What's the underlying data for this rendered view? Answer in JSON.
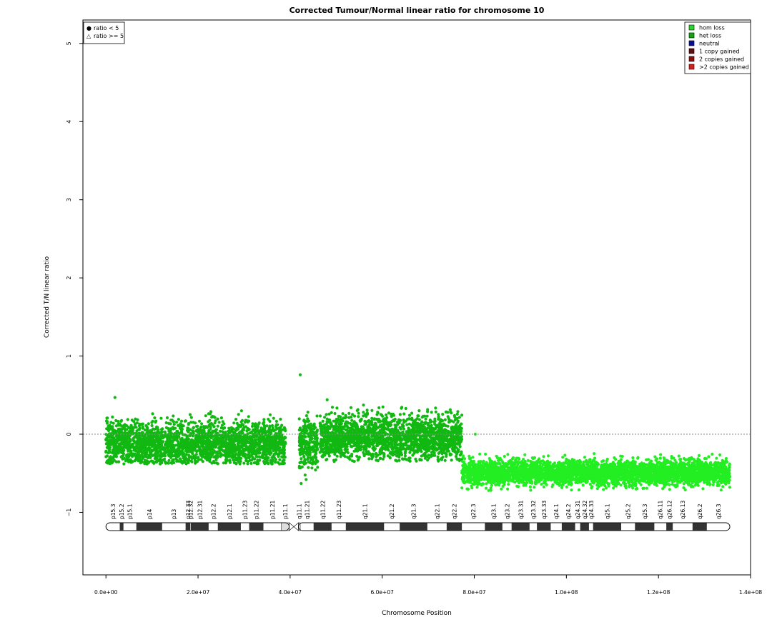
{
  "chart_data": {
    "type": "scatter",
    "title": "Corrected Tumour/Normal linear ratio for chromosome  10",
    "xlabel": "Chromosome Position",
    "ylabel": "Corrected T/N linear ratio",
    "xlim": [
      -5000000,
      140000000
    ],
    "ylim": [
      -1.8,
      5.3
    ],
    "x_ticks": [
      0,
      20000000,
      40000000,
      60000000,
      80000000,
      100000000,
      120000000,
      140000000
    ],
    "x_tick_labels": [
      "0.0e+00",
      "2.0e+07",
      "4.0e+07",
      "6.0e+07",
      "8.0e+07",
      "1.0e+08",
      "1.2e+08",
      "1.4e+08"
    ],
    "y_ticks": [
      -1,
      0,
      1,
      2,
      3,
      4,
      5
    ],
    "y_tick_labels": [
      "−1",
      "0",
      "1",
      "2",
      "3",
      "4",
      "5"
    ],
    "reference_line_y": 0,
    "symbol_legend": {
      "position": "top-left",
      "items": [
        {
          "symbol": "●",
          "label": "ratio < 5"
        },
        {
          "symbol": "△",
          "label": "ratio >= 5"
        }
      ]
    },
    "legend": {
      "position": "top-right",
      "items": [
        {
          "label": "hom loss",
          "color": "#2bd62b"
        },
        {
          "label": "het loss",
          "color": "#17a317"
        },
        {
          "label": "neutral",
          "color": "#0e0e94"
        },
        {
          "label": "1 copy gained",
          "color": "#5a1010"
        },
        {
          "label": "2 copies gained",
          "color": "#8b1010"
        },
        {
          "label": ">2 copies gained",
          "color": "#d42020"
        }
      ]
    },
    "series": [
      {
        "name": "het loss",
        "color": "#12b812",
        "segments": [
          {
            "x_start": 0,
            "x_end": 39000000,
            "mean": -0.12,
            "spread": 0.14,
            "min": -0.38,
            "max": 0.47
          },
          {
            "x_start": 42000000,
            "x_end": 46000000,
            "mean": -0.1,
            "spread": 0.16,
            "min": -0.63,
            "max": 0.76
          },
          {
            "x_start": 46500000,
            "x_end": 77300000,
            "mean": -0.04,
            "spread": 0.14,
            "min": -0.35,
            "max": 0.44
          }
        ]
      },
      {
        "name": "hom loss",
        "color": "#22ee22",
        "segments": [
          {
            "x_start": 77300000,
            "x_end": 135500000,
            "mean": -0.49,
            "spread": 0.08,
            "min": -0.72,
            "max": 0.0
          }
        ]
      }
    ],
    "ideogram": {
      "centromere": [
        39800000,
        41800000
      ],
      "bands": [
        {
          "name": "p15.3",
          "start": 0,
          "end": 3000000,
          "stain": "gneg"
        },
        {
          "name": "p15.2",
          "start": 3000000,
          "end": 3800000,
          "stain": "gpos"
        },
        {
          "name": "p15.1",
          "start": 3800000,
          "end": 6600000,
          "stain": "gneg"
        },
        {
          "name": "p14",
          "start": 6600000,
          "end": 12200000,
          "stain": "gpos"
        },
        {
          "name": "p13",
          "start": 12200000,
          "end": 17300000,
          "stain": "gneg"
        },
        {
          "name": "p12.33",
          "start": 17300000,
          "end": 18300000,
          "stain": "gpos"
        },
        {
          "name": "p12.32",
          "start": 18300000,
          "end": 18400000,
          "stain": "gneg"
        },
        {
          "name": "p12.31",
          "start": 18400000,
          "end": 22300000,
          "stain": "gpos"
        },
        {
          "name": "p12.2",
          "start": 22300000,
          "end": 24300000,
          "stain": "gneg"
        },
        {
          "name": "p12.1",
          "start": 24300000,
          "end": 29300000,
          "stain": "gpos"
        },
        {
          "name": "p11.23",
          "start": 29300000,
          "end": 31100000,
          "stain": "gneg"
        },
        {
          "name": "p11.22",
          "start": 31100000,
          "end": 34200000,
          "stain": "gpos"
        },
        {
          "name": "p11.21",
          "start": 34200000,
          "end": 38100000,
          "stain": "gneg"
        },
        {
          "name": "p11.1",
          "start": 38100000,
          "end": 39800000,
          "stain": "gvar"
        },
        {
          "name": "q11.1",
          "start": 41800000,
          "end": 42200000,
          "stain": "gvar"
        },
        {
          "name": "q11.21",
          "start": 42200000,
          "end": 45100000,
          "stain": "gneg"
        },
        {
          "name": "q11.22",
          "start": 45100000,
          "end": 49000000,
          "stain": "gpos"
        },
        {
          "name": "q11.23",
          "start": 49000000,
          "end": 52100000,
          "stain": "gneg"
        },
        {
          "name": "q21.1",
          "start": 52100000,
          "end": 60400000,
          "stain": "gpos"
        },
        {
          "name": "q21.2",
          "start": 60400000,
          "end": 63800000,
          "stain": "gneg"
        },
        {
          "name": "q21.3",
          "start": 63800000,
          "end": 69800000,
          "stain": "gpos"
        },
        {
          "name": "q22.1",
          "start": 69800000,
          "end": 74000000,
          "stain": "gneg"
        },
        {
          "name": "q22.2",
          "start": 74000000,
          "end": 77300000,
          "stain": "gpos"
        },
        {
          "name": "q22.3",
          "start": 77300000,
          "end": 82300000,
          "stain": "gneg"
        },
        {
          "name": "q23.1",
          "start": 82300000,
          "end": 86100000,
          "stain": "gpos"
        },
        {
          "name": "q23.2",
          "start": 86100000,
          "end": 88100000,
          "stain": "gneg"
        },
        {
          "name": "q23.31",
          "start": 88100000,
          "end": 92000000,
          "stain": "gpos"
        },
        {
          "name": "q23.32",
          "start": 92000000,
          "end": 93600000,
          "stain": "gneg"
        },
        {
          "name": "q23.33",
          "start": 93600000,
          "end": 96600000,
          "stain": "gpos"
        },
        {
          "name": "q24.1",
          "start": 96600000,
          "end": 99000000,
          "stain": "gneg"
        },
        {
          "name": "q24.2",
          "start": 99000000,
          "end": 101900000,
          "stain": "gpos"
        },
        {
          "name": "q24.31",
          "start": 101900000,
          "end": 103000000,
          "stain": "gneg"
        },
        {
          "name": "q24.32",
          "start": 103000000,
          "end": 104900000,
          "stain": "gpos"
        },
        {
          "name": "q24.33",
          "start": 104900000,
          "end": 105800000,
          "stain": "gneg"
        },
        {
          "name": "q25.1",
          "start": 105800000,
          "end": 111900000,
          "stain": "gpos"
        },
        {
          "name": "q25.2",
          "start": 111900000,
          "end": 114900000,
          "stain": "gneg"
        },
        {
          "name": "q25.3",
          "start": 114900000,
          "end": 119100000,
          "stain": "gpos"
        },
        {
          "name": "q26.11",
          "start": 119100000,
          "end": 121700000,
          "stain": "gneg"
        },
        {
          "name": "q26.12",
          "start": 121700000,
          "end": 123100000,
          "stain": "gpos"
        },
        {
          "name": "q26.13",
          "start": 123100000,
          "end": 127400000,
          "stain": "gneg"
        },
        {
          "name": "q26.2",
          "start": 127400000,
          "end": 130500000,
          "stain": "gpos"
        },
        {
          "name": "q26.3",
          "start": 130500000,
          "end": 135500000,
          "stain": "gneg"
        }
      ]
    }
  }
}
